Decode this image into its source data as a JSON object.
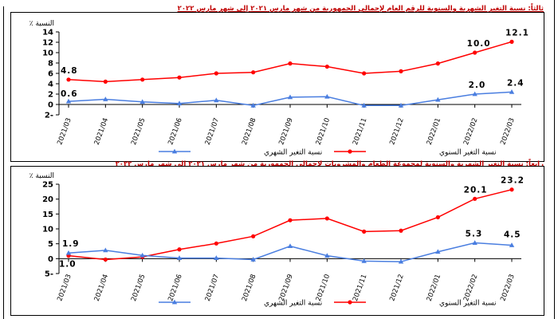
{
  "captions": [
    "ثالثاً: نسبة التغير الشهرية والسنوية للرقم العام لإجمالي الجمهورية من شهر مارس ٢٠٢١ إلى شهر مارس ٢٠٢٢",
    "رابعاً: نسبة التغير الشهرية والسنوية لمجموعة الطعام والمشروبات لإجمالي الجمهورية من شهر مارس ٢٠٢١ إلى شهر مارس ٢٠٢٢"
  ],
  "chart_data": [
    {
      "type": "line",
      "title": "",
      "ylabel": "النسبة ٪",
      "xlabel": "",
      "categories": [
        "2021/03",
        "2021/04",
        "2021/05",
        "2021/06",
        "2021/07",
        "2021/08",
        "2021/09",
        "2021/10",
        "2021/11",
        "2021/12",
        "2022/01",
        "2022/02",
        "2022/03"
      ],
      "ylim": [
        -2,
        14
      ],
      "yticks": [
        -2,
        0,
        2,
        4,
        6,
        8,
        10,
        12,
        14
      ],
      "ytick_labels": [
        "2-",
        "0",
        "2",
        "4",
        "6",
        "8",
        "10",
        "12",
        "14"
      ],
      "grid": false,
      "legend_position": "bottom",
      "series": [
        {
          "name": "نسبة التغير السنوي",
          "color": "#ff0000",
          "marker": "circle",
          "values": [
            4.8,
            4.4,
            4.8,
            5.2,
            6.0,
            6.2,
            7.9,
            7.3,
            6.0,
            6.4,
            7.9,
            10.0,
            12.1
          ],
          "data_labels": [
            {
              "index": 0,
              "text": "4.8"
            },
            {
              "index": 11,
              "text": "10.0"
            },
            {
              "index": 12,
              "text": "12.1"
            }
          ]
        },
        {
          "name": "نسبة التغير الشهري",
          "color": "#4a7ee0",
          "marker": "triangle",
          "values": [
            0.6,
            1.0,
            0.5,
            0.2,
            0.8,
            -0.2,
            1.4,
            1.5,
            -0.2,
            -0.2,
            0.9,
            2.0,
            2.4
          ],
          "data_labels": [
            {
              "index": 0,
              "text": "0.6"
            },
            {
              "index": 11,
              "text": "2.0"
            },
            {
              "index": 12,
              "text": "2.4"
            }
          ]
        }
      ]
    },
    {
      "type": "line",
      "title": "",
      "ylabel": "النسبة ٪",
      "xlabel": "",
      "categories": [
        "2021/03",
        "2021/04",
        "2021/05",
        "2021/06",
        "2021/07",
        "2021/08",
        "2021/09",
        "2021/10",
        "2021/11",
        "2021/12",
        "2022/01",
        "2022/02",
        "2022/03"
      ],
      "ylim": [
        -5,
        25
      ],
      "yticks": [
        -5,
        0,
        5,
        10,
        15,
        20,
        25
      ],
      "ytick_labels": [
        "5-",
        "0",
        "5",
        "10",
        "15",
        "20",
        "25"
      ],
      "grid": false,
      "legend_position": "bottom",
      "series": [
        {
          "name": "نسبة التغير السنوي",
          "color": "#ff0000",
          "marker": "circle",
          "values": [
            1.0,
            -0.3,
            0.6,
            3.1,
            5.1,
            7.5,
            12.9,
            13.5,
            9.1,
            9.4,
            13.9,
            20.1,
            23.2
          ],
          "data_labels": [
            {
              "index": 0,
              "text": "1.0"
            },
            {
              "index": 11,
              "text": "20.1"
            },
            {
              "index": 12,
              "text": "23.2"
            }
          ]
        },
        {
          "name": "نسبة التغير الشهري",
          "color": "#4a7ee0",
          "marker": "triangle",
          "values": [
            1.9,
            2.8,
            1.1,
            0.2,
            0.2,
            -0.3,
            4.2,
            1.0,
            -0.8,
            -1.0,
            2.3,
            5.3,
            4.5
          ],
          "data_labels": [
            {
              "index": 0,
              "text": "1.9"
            },
            {
              "index": 11,
              "text": "5.3"
            },
            {
              "index": 12,
              "text": "4.5"
            }
          ]
        }
      ]
    }
  ]
}
